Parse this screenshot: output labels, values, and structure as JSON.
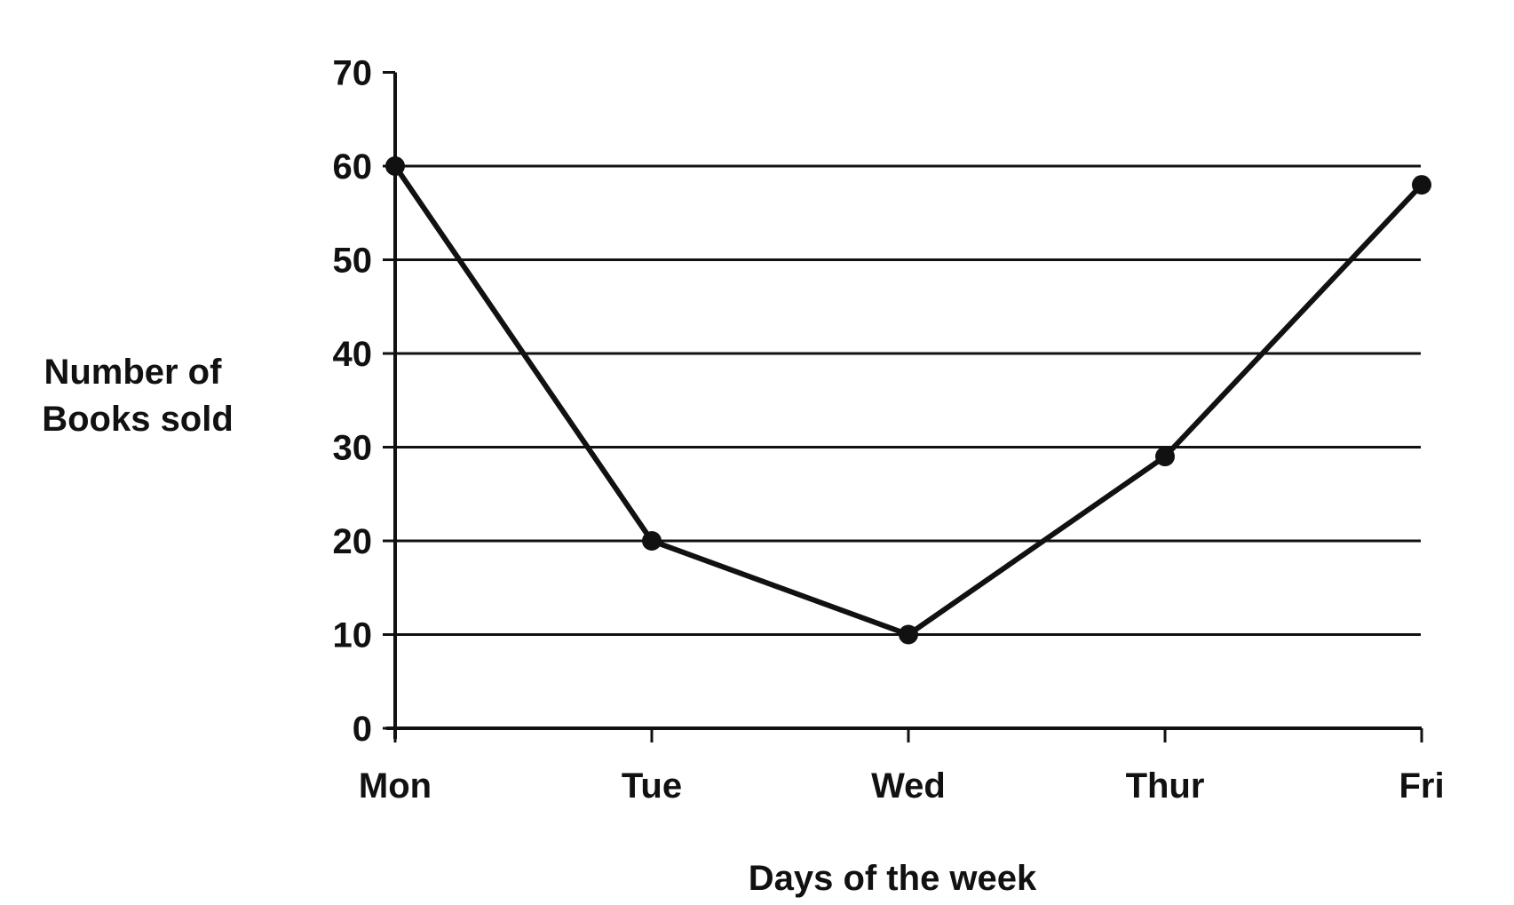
{
  "chart_data": {
    "type": "line",
    "title": "",
    "xlabel": "Days of the week",
    "ylabel": "Number of Books sold",
    "ylabel_lines": [
      "Number of",
      "Books sold"
    ],
    "categories": [
      "Mon",
      "Tue",
      "Wed",
      "Thur",
      "Fri"
    ],
    "series": [
      {
        "values": [
          60,
          20,
          10,
          29,
          58
        ]
      }
    ],
    "ylim": [
      0,
      70
    ],
    "yticks": [
      0,
      10,
      20,
      30,
      40,
      50,
      60,
      70
    ],
    "grid": true,
    "legend": "none",
    "colors": {
      "line": "#111111",
      "grid": "#111111",
      "axis": "#111111"
    }
  }
}
